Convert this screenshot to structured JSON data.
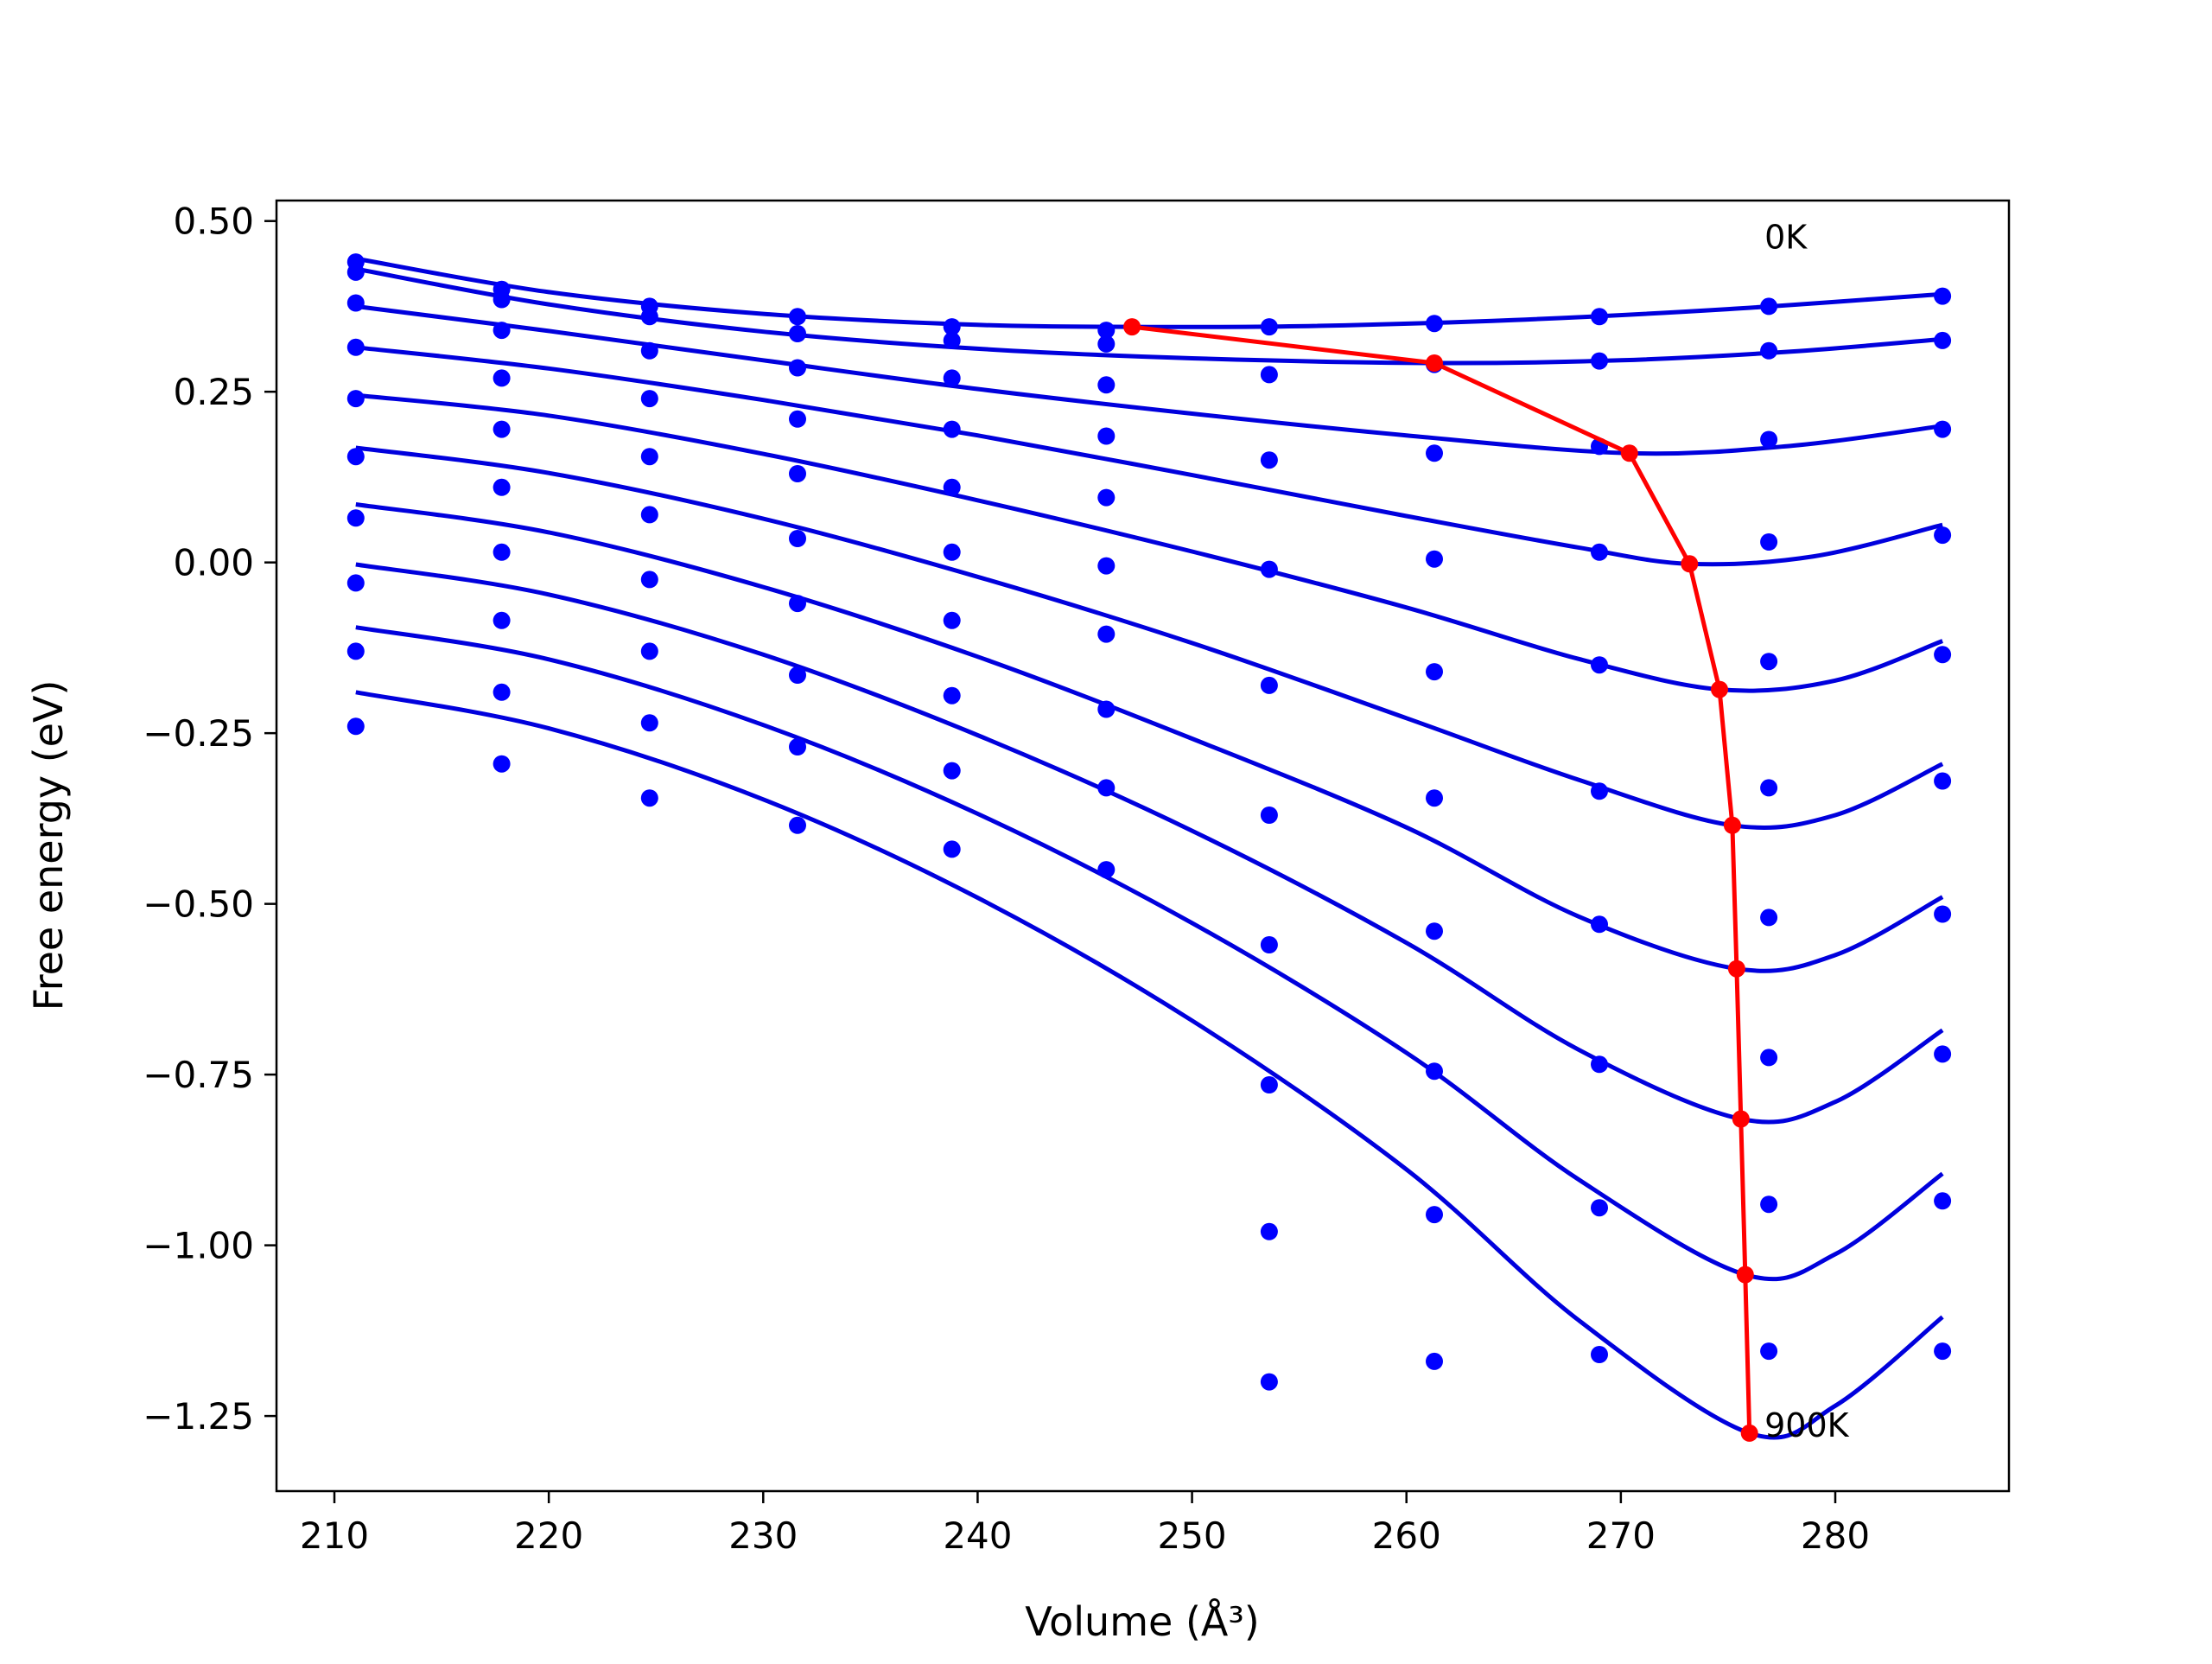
{
  "chart_data": {
    "type": "line",
    "xlabel": "Volume (Å³)",
    "ylabel": "Free energy (eV)",
    "xlim": [
      207.3,
      288.1
    ],
    "ylim": [
      -1.36,
      0.53
    ],
    "x_ticks": [
      210,
      220,
      230,
      240,
      250,
      260,
      270,
      280
    ],
    "x_tick_labels": [
      "210",
      "220",
      "230",
      "240",
      "250",
      "260",
      "270",
      "280"
    ],
    "y_ticks": [
      0.5,
      0.25,
      0.0,
      -0.25,
      -0.5,
      -0.75,
      -1.0,
      -1.25
    ],
    "y_tick_labels": [
      "0.50",
      "0.25",
      "0.00",
      "−0.25",
      "−0.50",
      "−0.75",
      "−1.00",
      "−1.25"
    ],
    "grid": false,
    "legend": "none",
    "annotations": [
      {
        "text": "0K",
        "x": 276.7,
        "y": 0.46
      },
      {
        "text": "900K",
        "x": 276.7,
        "y": -1.28
      }
    ],
    "colors": {
      "curves": "#0000dd",
      "points": "#0000ff",
      "minima": "#ff0000"
    },
    "point_volumes": [
      211.0,
      217.8,
      224.7,
      231.6,
      238.8,
      246.0,
      253.6,
      261.3,
      269.0,
      276.9,
      285.0
    ],
    "point_sets": [
      [
        0.44,
        0.4,
        0.375,
        0.36,
        0.345,
        0.34,
        0.345,
        0.35,
        0.36,
        0.375,
        0.39
      ],
      [
        0.425,
        0.385,
        0.36,
        0.335,
        0.325,
        0.32,
        0.275,
        0.29,
        0.295,
        0.31,
        0.325
      ],
      [
        0.38,
        0.34,
        0.31,
        0.285,
        0.27,
        0.26,
        0.15,
        0.16,
        0.17,
        0.18,
        0.195
      ],
      [
        0.315,
        0.27,
        0.24,
        0.21,
        0.195,
        0.185,
        -0.01,
        0.005,
        0.015,
        0.03,
        0.04
      ],
      [
        0.24,
        0.195,
        0.155,
        0.13,
        0.11,
        0.095,
        -0.18,
        -0.16,
        -0.15,
        -0.145,
        -0.135
      ],
      [
        0.155,
        0.11,
        0.07,
        0.035,
        0.015,
        -0.005,
        -0.37,
        -0.345,
        -0.335,
        -0.33,
        -0.32
      ],
      [
        0.065,
        0.015,
        -0.025,
        -0.06,
        -0.085,
        -0.105,
        -0.56,
        -0.54,
        -0.53,
        -0.52,
        -0.515
      ],
      [
        -0.03,
        -0.085,
        -0.13,
        -0.165,
        -0.195,
        -0.215,
        -0.765,
        -0.745,
        -0.735,
        -0.725,
        -0.72
      ],
      [
        -0.13,
        -0.19,
        -0.235,
        -0.27,
        -0.305,
        -0.33,
        -0.98,
        -0.955,
        -0.945,
        -0.94,
        -0.935
      ],
      [
        -0.24,
        -0.295,
        -0.345,
        -0.385,
        -0.42,
        -0.45,
        -1.2,
        -1.17,
        -1.16,
        -1.155,
        -1.155
      ]
    ],
    "fit_curves": [
      {
        "x": [
          211,
          220,
          230,
          240,
          247.2,
          255,
          265,
          275,
          285
        ],
        "y": [
          0.445,
          0.396,
          0.364,
          0.348,
          0.345,
          0.346,
          0.355,
          0.371,
          0.393
        ]
      },
      {
        "x": [
          211,
          220,
          230,
          240,
          250,
          261.3,
          270,
          278,
          285
        ],
        "y": [
          0.43,
          0.378,
          0.338,
          0.313,
          0.299,
          0.292,
          0.296,
          0.309,
          0.327
        ]
      },
      {
        "x": [
          211,
          220,
          230,
          240,
          250,
          260,
          270.4,
          278,
          285
        ],
        "y": [
          0.375,
          0.339,
          0.296,
          0.254,
          0.218,
          0.186,
          0.16,
          0.171,
          0.2
        ]
      },
      {
        "x": [
          211,
          220,
          230,
          240,
          250,
          260,
          268,
          273.2,
          279,
          285
        ],
        "y": [
          0.315,
          0.284,
          0.238,
          0.186,
          0.128,
          0.068,
          0.022,
          -0.002,
          0.009,
          0.055
        ]
      },
      {
        "x": [
          211,
          220,
          230,
          240,
          250,
          260,
          268,
          274.6,
          280,
          285
        ],
        "y": [
          0.245,
          0.215,
          0.159,
          0.091,
          0.016,
          -0.066,
          -0.141,
          -0.186,
          -0.173,
          -0.115
        ]
      },
      {
        "x": [
          211,
          220,
          230,
          240,
          250,
          260,
          268,
          275.2,
          280,
          285
        ],
        "y": [
          0.168,
          0.131,
          0.064,
          -0.021,
          -0.118,
          -0.228,
          -0.318,
          -0.385,
          -0.37,
          -0.295
        ]
      },
      {
        "x": [
          211,
          220,
          230,
          240,
          250,
          260,
          268,
          275.4,
          280,
          285
        ],
        "y": [
          0.085,
          0.044,
          -0.036,
          -0.138,
          -0.258,
          -0.388,
          -0.518,
          -0.595,
          -0.575,
          -0.49
        ]
      },
      {
        "x": [
          211,
          220,
          230,
          240,
          250,
          260,
          268,
          275.6,
          280,
          285
        ],
        "y": [
          -0.003,
          -0.047,
          -0.135,
          -0.253,
          -0.393,
          -0.557,
          -0.713,
          -0.815,
          -0.79,
          -0.685
        ]
      },
      {
        "x": [
          211,
          220,
          230,
          240,
          250,
          260,
          268,
          275.8,
          280,
          285
        ],
        "y": [
          -0.095,
          -0.142,
          -0.238,
          -0.368,
          -0.528,
          -0.718,
          -0.903,
          -1.043,
          -1.013,
          -0.895
        ]
      },
      {
        "x": [
          211,
          220,
          230,
          240,
          250,
          260,
          268,
          276.0,
          280,
          285
        ],
        "y": [
          -0.19,
          -0.243,
          -0.347,
          -0.491,
          -0.671,
          -0.889,
          -1.109,
          -1.275,
          -1.235,
          -1.105
        ]
      }
    ],
    "minima_path": {
      "x": [
        247.2,
        261.3,
        270.4,
        273.2,
        274.6,
        275.2,
        275.4,
        275.6,
        275.8,
        276.0
      ],
      "y": [
        0.345,
        0.292,
        0.16,
        -0.002,
        -0.186,
        -0.385,
        -0.595,
        -0.815,
        -1.043,
        -1.275
      ]
    }
  }
}
